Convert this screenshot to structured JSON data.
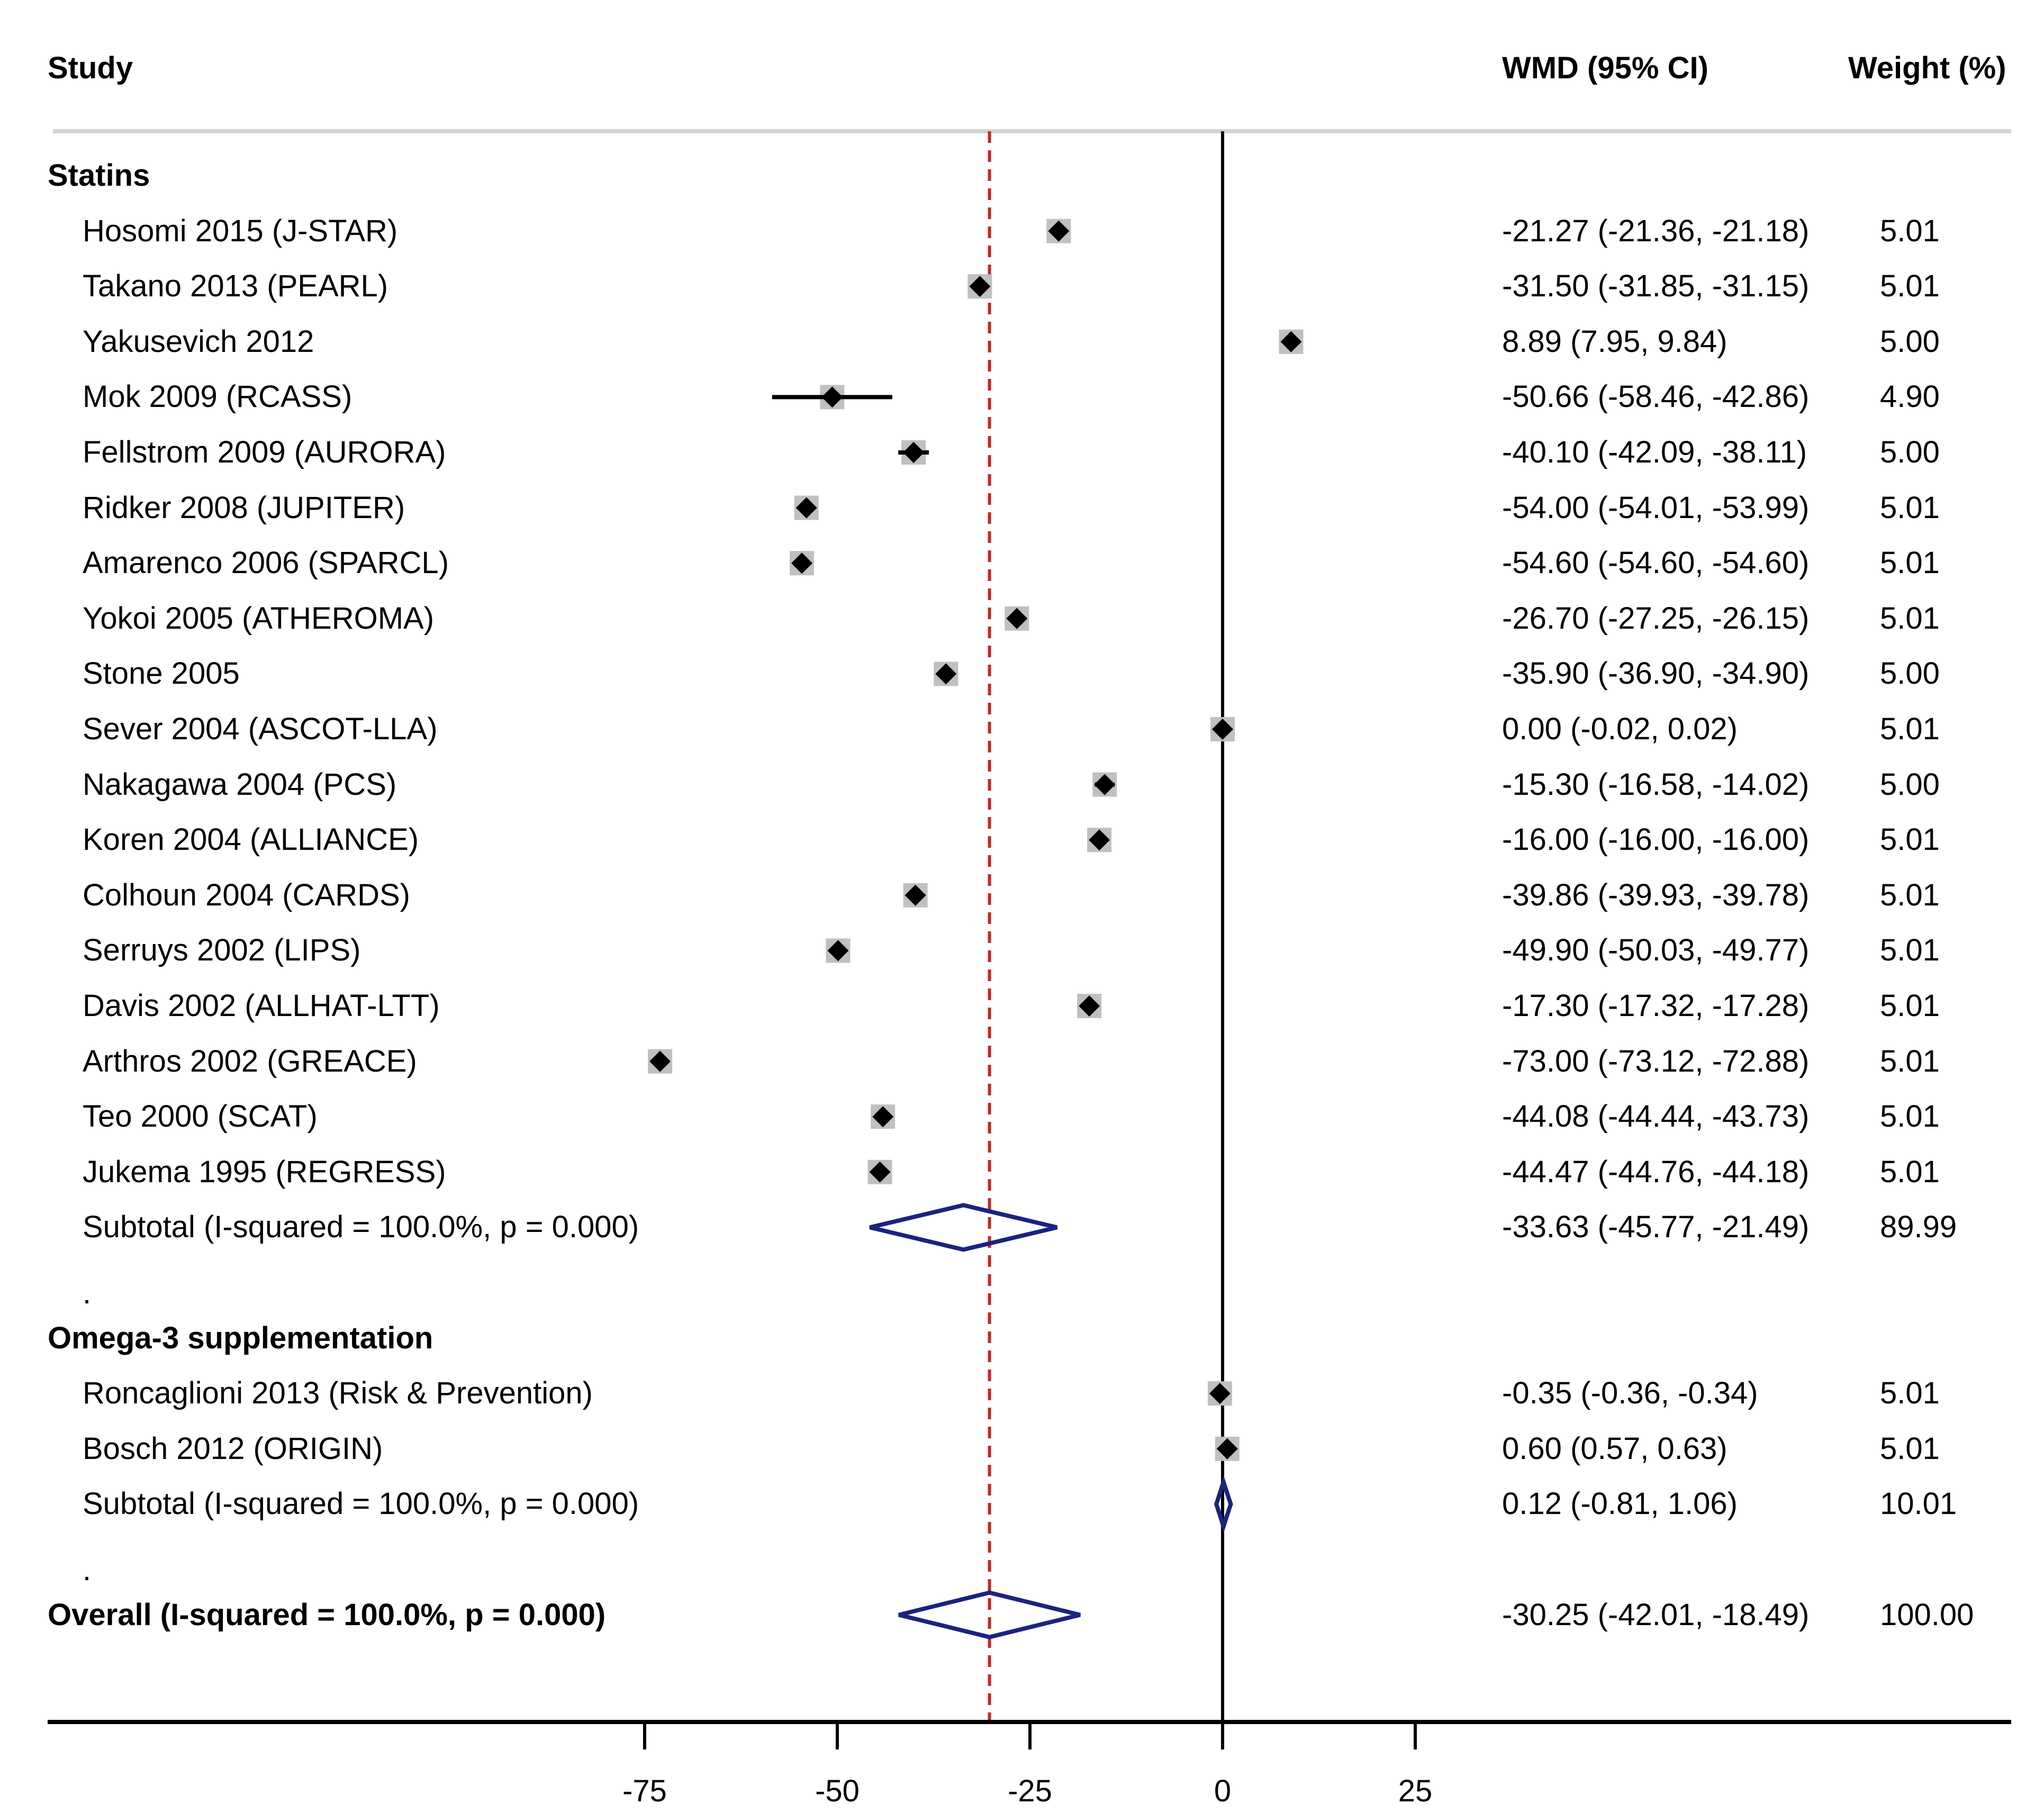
{
  "chart_data": {
    "type": "forest",
    "headers": {
      "study": "Study",
      "effect": "WMD (95% CI)",
      "weight": "Weight (%)"
    },
    "colors": {
      "point": "#000000",
      "box": "#c0c0c0",
      "diamond": "#1a237e",
      "refline": "#c62828",
      "axis": "#000000"
    },
    "xlim": [
      -75,
      25
    ],
    "xticks": [
      -75,
      -50,
      -25,
      0,
      25
    ],
    "xtick_labels": [
      "-75",
      "-50",
      "-25",
      "0",
      "25"
    ],
    "overall_line": -30.25,
    "rows": [
      {
        "kind": "group",
        "label": "Statins"
      },
      {
        "kind": "study",
        "label": "Hosomi 2015 (J-STAR)",
        "est": -21.27,
        "lo": -21.36,
        "hi": -21.18,
        "ci_text": "-21.27 (-21.36, -21.18)",
        "weight": "5.01"
      },
      {
        "kind": "study",
        "label": "Takano 2013 (PEARL)",
        "est": -31.5,
        "lo": -31.85,
        "hi": -31.15,
        "ci_text": "-31.50 (-31.85, -31.15)",
        "weight": "5.01"
      },
      {
        "kind": "study",
        "label": "Yakusevich 2012",
        "est": 8.89,
        "lo": 7.95,
        "hi": 9.84,
        "ci_text": "8.89 (7.95, 9.84)",
        "weight": "5.00"
      },
      {
        "kind": "study",
        "label": "Mok 2009 (RCASS)",
        "est": -50.66,
        "lo": -58.46,
        "hi": -42.86,
        "ci_text": "-50.66 (-58.46, -42.86)",
        "weight": "4.90"
      },
      {
        "kind": "study",
        "label": "Fellstrom 2009 (AURORA)",
        "est": -40.1,
        "lo": -42.09,
        "hi": -38.11,
        "ci_text": "-40.10 (-42.09, -38.11)",
        "weight": "5.00"
      },
      {
        "kind": "study",
        "label": "Ridker 2008 (JUPITER)",
        "est": -54.0,
        "lo": -54.01,
        "hi": -53.99,
        "ci_text": "-54.00 (-54.01, -53.99)",
        "weight": "5.01"
      },
      {
        "kind": "study",
        "label": "Amarenco 2006 (SPARCL)",
        "est": -54.6,
        "lo": -54.6,
        "hi": -54.6,
        "ci_text": "-54.60 (-54.60, -54.60)",
        "weight": "5.01"
      },
      {
        "kind": "study",
        "label": "Yokoi 2005 (ATHEROMA)",
        "est": -26.7,
        "lo": -27.25,
        "hi": -26.15,
        "ci_text": "-26.70 (-27.25, -26.15)",
        "weight": "5.01"
      },
      {
        "kind": "study",
        "label": "Stone 2005",
        "est": -35.9,
        "lo": -36.9,
        "hi": -34.9,
        "ci_text": "-35.90 (-36.90, -34.90)",
        "weight": "5.00"
      },
      {
        "kind": "study",
        "label": "Sever 2004 (ASCOT-LLA)",
        "est": 0.0,
        "lo": -0.02,
        "hi": 0.02,
        "ci_text": "0.00 (-0.02, 0.02)",
        "weight": "5.01"
      },
      {
        "kind": "study",
        "label": "Nakagawa 2004 (PCS)",
        "est": -15.3,
        "lo": -16.58,
        "hi": -14.02,
        "ci_text": "-15.30 (-16.58, -14.02)",
        "weight": "5.00"
      },
      {
        "kind": "study",
        "label": "Koren 2004 (ALLIANCE)",
        "est": -16.0,
        "lo": -16.0,
        "hi": -16.0,
        "ci_text": "-16.00 (-16.00, -16.00)",
        "weight": "5.01"
      },
      {
        "kind": "study",
        "label": "Colhoun 2004 (CARDS)",
        "est": -39.86,
        "lo": -39.93,
        "hi": -39.78,
        "ci_text": "-39.86 (-39.93, -39.78)",
        "weight": "5.01"
      },
      {
        "kind": "study",
        "label": "Serruys 2002 (LIPS)",
        "est": -49.9,
        "lo": -50.03,
        "hi": -49.77,
        "ci_text": "-49.90 (-50.03, -49.77)",
        "weight": "5.01"
      },
      {
        "kind": "study",
        "label": "Davis 2002 (ALLHAT-LTT)",
        "est": -17.3,
        "lo": -17.32,
        "hi": -17.28,
        "ci_text": "-17.30 (-17.32, -17.28)",
        "weight": "5.01"
      },
      {
        "kind": "study",
        "label": "Arthros 2002 (GREACE)",
        "est": -73.0,
        "lo": -73.12,
        "hi": -72.88,
        "ci_text": "-73.00 (-73.12, -72.88)",
        "weight": "5.01"
      },
      {
        "kind": "study",
        "label": "Teo 2000 (SCAT)",
        "est": -44.08,
        "lo": -44.44,
        "hi": -43.73,
        "ci_text": "-44.08 (-44.44, -43.73)",
        "weight": "5.01"
      },
      {
        "kind": "study",
        "label": "Jukema 1995 (REGRESS)",
        "est": -44.47,
        "lo": -44.76,
        "hi": -44.18,
        "ci_text": "-44.47 (-44.76, -44.18)",
        "weight": "5.01"
      },
      {
        "kind": "subtotal",
        "label": "Subtotal  (I-squared = 100.0%, p = 0.000)",
        "est": -33.63,
        "lo": -45.77,
        "hi": -21.49,
        "ci_text": "-33.63 (-45.77, -21.49)",
        "weight": "89.99"
      },
      {
        "kind": "spacer",
        "label": "."
      },
      {
        "kind": "group",
        "label": "Omega-3 supplementation"
      },
      {
        "kind": "study",
        "label": "Roncaglioni 2013 (Risk & Prevention)",
        "est": -0.35,
        "lo": -0.36,
        "hi": -0.34,
        "ci_text": "-0.35 (-0.36, -0.34)",
        "weight": "5.01"
      },
      {
        "kind": "study",
        "label": "Bosch 2012 (ORIGIN)",
        "est": 0.6,
        "lo": 0.57,
        "hi": 0.63,
        "ci_text": "0.60 (0.57, 0.63)",
        "weight": "5.01"
      },
      {
        "kind": "subtotal",
        "label": "Subtotal  (I-squared = 100.0%, p = 0.000)",
        "est": 0.12,
        "lo": -0.81,
        "hi": 1.06,
        "ci_text": "0.12 (-0.81, 1.06)",
        "weight": "10.01"
      },
      {
        "kind": "spacer",
        "label": "."
      },
      {
        "kind": "overall",
        "label": "Overall  (I-squared = 100.0%, p = 0.000)",
        "est": -30.25,
        "lo": -42.01,
        "hi": -18.49,
        "ci_text": "-30.25 (-42.01, -18.49)",
        "weight": "100.00"
      }
    ]
  }
}
